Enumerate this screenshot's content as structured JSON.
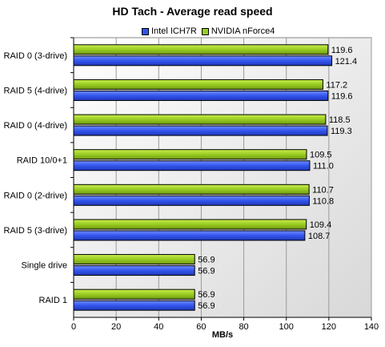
{
  "chart_data": {
    "type": "bar",
    "orientation": "horizontal",
    "title": "HD Tach - Average read speed",
    "xlabel": "MB/s",
    "ylabel": "",
    "xlim": [
      0,
      140
    ],
    "xticks": [
      0,
      20,
      40,
      60,
      80,
      100,
      120,
      140
    ],
    "grid": true,
    "legend_position": "top",
    "categories": [
      "RAID 0 (3-drive)",
      "RAID 5 (4-drive)",
      "RAID 0 (4-drive)",
      "RAID 10/0+1",
      "RAID 0 (2-drive)",
      "RAID 5 (3-drive)",
      "Single drive",
      "RAID 1"
    ],
    "series": [
      {
        "name": "Intel ICH7R",
        "color": "#3355ee",
        "values": [
          121.4,
          119.6,
          119.3,
          111.0,
          110.8,
          108.7,
          56.9,
          56.9
        ],
        "labels": [
          "121.4",
          "119.6",
          "119.3",
          "111.0",
          "110.8",
          "108.7",
          "56.9",
          "56.9"
        ]
      },
      {
        "name": "NVIDIA nForce4",
        "color": "#99cc22",
        "values": [
          119.6,
          117.2,
          118.5,
          109.5,
          110.7,
          109.4,
          56.9,
          56.9
        ],
        "labels": [
          "119.6",
          "117.2",
          "118.5",
          "109.5",
          "110.7",
          "109.4",
          "56.9",
          "56.9"
        ]
      }
    ]
  }
}
